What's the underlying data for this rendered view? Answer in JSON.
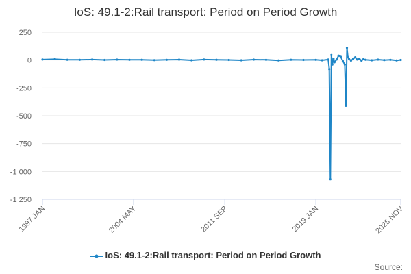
{
  "chart_data": {
    "type": "line",
    "title": "IoS: 49.1-2:Rail transport: Period on Period Growth",
    "xlabel": "",
    "ylabel": "",
    "ylim": [
      -1250,
      250
    ],
    "yticks": [
      250,
      0,
      -250,
      -500,
      -750,
      -1000,
      -1250
    ],
    "ytick_labels": [
      "250",
      "0",
      "-250",
      "-500",
      "-750",
      "-1 000",
      "-1 250"
    ],
    "xlim": [
      1997.0,
      2025.83
    ],
    "xticks": [
      {
        "x": 1997.0,
        "label": "1997 JAN"
      },
      {
        "x": 2004.33,
        "label": "2004 MAY"
      },
      {
        "x": 2011.67,
        "label": "2011 SEP"
      },
      {
        "x": 2019.0,
        "label": "2019 JAN"
      },
      {
        "x": 2025.83,
        "label": "2025 NOV"
      }
    ],
    "grid": "horizontal",
    "legend_position": "bottom-center",
    "series": [
      {
        "name": "IoS: 49.1-2:Rail transport: Period on Period Growth",
        "color": "#1f86c7",
        "x": [
          1997.0,
          1998.0,
          1999.0,
          2000.0,
          2001.0,
          2002.0,
          2003.0,
          2004.0,
          2005.0,
          2006.0,
          2007.0,
          2008.0,
          2009.0,
          2010.0,
          2011.0,
          2012.0,
          2013.0,
          2014.0,
          2015.0,
          2016.0,
          2017.0,
          2018.0,
          2019.0,
          2019.5,
          2020.0,
          2020.08,
          2020.17,
          2020.25,
          2020.33,
          2020.42,
          2020.5,
          2020.67,
          2020.83,
          2021.0,
          2021.17,
          2021.33,
          2021.42,
          2021.5,
          2021.58,
          2021.67,
          2021.83,
          2022.0,
          2022.17,
          2022.33,
          2022.5,
          2022.67,
          2022.83,
          2023.0,
          2023.5,
          2024.0,
          2024.5,
          2025.0,
          2025.5,
          2025.83
        ],
        "y": [
          5,
          8,
          3,
          2,
          5,
          1,
          4,
          2,
          3,
          -1,
          2,
          4,
          -2,
          5,
          3,
          1,
          -2,
          4,
          2,
          -3,
          3,
          1,
          2,
          -2,
          5,
          -80,
          -1070,
          45,
          -40,
          10,
          -20,
          5,
          40,
          30,
          -10,
          -40,
          -410,
          110,
          25,
          10,
          -5,
          10,
          25,
          5,
          12,
          -5,
          8,
          3,
          -2,
          4,
          0,
          2,
          -3,
          1
        ]
      }
    ]
  },
  "legend": {
    "label": "IoS: 49.1-2:Rail transport: Period on Period Growth"
  },
  "credits": {
    "text": "Source:"
  }
}
